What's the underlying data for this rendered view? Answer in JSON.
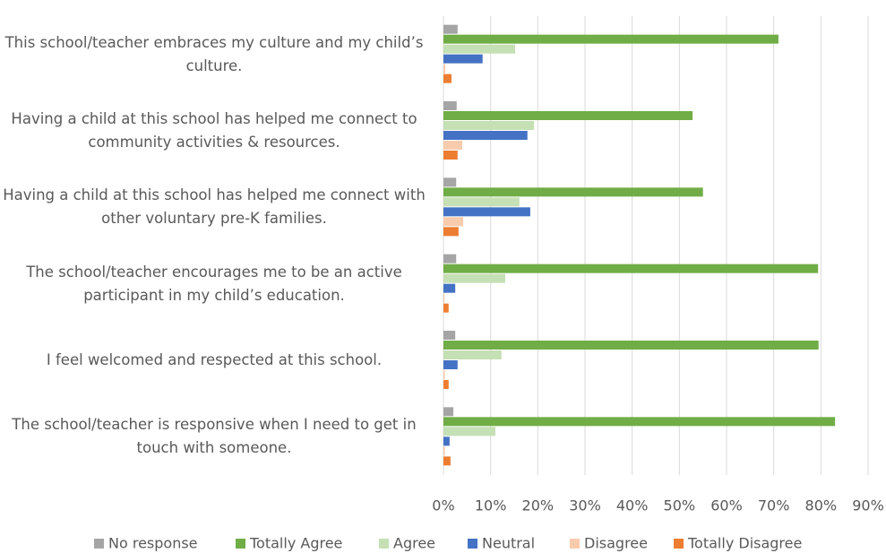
{
  "chart_data": {
    "type": "hbar",
    "categories": [
      "This school/teacher embraces my culture and my child’s culture.",
      "Having a child at this school has helped me connect to community activities & resources.",
      "Having a child at this school has helped me connect with other voluntary pre-K families.",
      "The school/teacher encourages me to be an active participant in my child’s education.",
      "I feel welcomed and respected at this school.",
      "The school/teacher is responsive when I need to get in touch with someone."
    ],
    "series": [
      {
        "name": "No response",
        "color": "#a5a5a5",
        "values": [
          3.0,
          2.8,
          2.7,
          2.7,
          2.5,
          2.1
        ]
      },
      {
        "name": "Totally Agree",
        "color": "#70ad47",
        "values": [
          71,
          52.8,
          55,
          79.4,
          79.5,
          83
        ]
      },
      {
        "name": "Agree",
        "color": "#c5e0b4",
        "values": [
          15.2,
          19.2,
          16.1,
          13.1,
          12.3,
          11
        ]
      },
      {
        "name": "Neutral",
        "color": "#4472c4",
        "values": [
          8.3,
          17.8,
          18.4,
          2.5,
          3.0,
          1.3
        ]
      },
      {
        "name": "Disagree",
        "color": "#f8cbad",
        "values": [
          0.4,
          4.0,
          4.2,
          0.2,
          0.3,
          0.3
        ]
      },
      {
        "name": "Totally Disagree",
        "color": "#ed7d31",
        "values": [
          1.7,
          3.0,
          3.2,
          1.1,
          1.1,
          1.5
        ]
      }
    ],
    "xlim": [
      0,
      90
    ],
    "xticks": [
      {
        "value": 0,
        "label": "0%"
      },
      {
        "value": 10,
        "label": "10%"
      },
      {
        "value": 20,
        "label": "20%"
      },
      {
        "value": 30,
        "label": "30%"
      },
      {
        "value": 40,
        "label": "40%"
      },
      {
        "value": 50,
        "label": "50%"
      },
      {
        "value": 60,
        "label": "60%"
      },
      {
        "value": 70,
        "label": "70%"
      },
      {
        "value": 80,
        "label": "80%"
      },
      {
        "value": 90,
        "label": "90%"
      }
    ],
    "grid": true,
    "legend": "bottom"
  }
}
